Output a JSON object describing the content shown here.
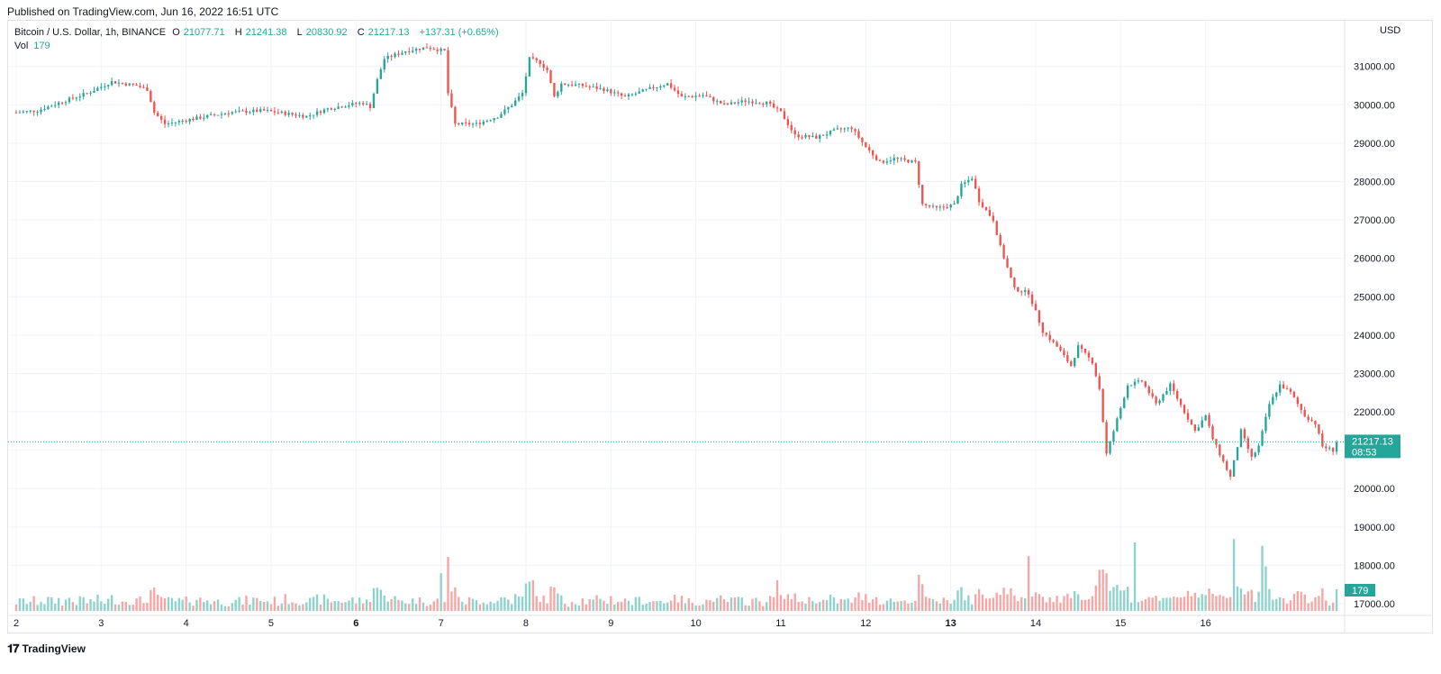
{
  "header": {
    "published": "Published on TradingView.com, Jun 16, 2022 16:51 UTC"
  },
  "legend": {
    "symbol": "Bitcoin / U.S. Dollar, 1h, BINANCE",
    "open_label": "O",
    "open": "21077.71",
    "high_label": "H",
    "high": "21241.38",
    "low_label": "L",
    "low": "20830.92",
    "close_label": "C",
    "close": "21217.13",
    "change": "+137.31 (+0.65%)",
    "vol_label": "Vol",
    "vol": "179"
  },
  "price_scale": {
    "currency": "USD",
    "last_price": "21217.13",
    "countdown": "08:53",
    "vol_tag": "179"
  },
  "footer": {
    "brand": "TradingView"
  },
  "colors": {
    "up": "#26a69a",
    "down": "#ef5350",
    "up_vol": "#8dd3cb",
    "down_vol": "#f6a6a4",
    "grid": "#f0f3fa"
  },
  "chart_data": {
    "type": "candlestick",
    "title": "Bitcoin / U.S. Dollar, 1h, BINANCE",
    "y_label": "USD",
    "ylim": [
      17000,
      31500
    ],
    "y_ticks": [
      "17000.00",
      "18000.00",
      "19000.00",
      "20000.00",
      "21000.00",
      "22000.00",
      "23000.00",
      "24000.00",
      "25000.00",
      "26000.00",
      "27000.00",
      "28000.00",
      "29000.00",
      "30000.00",
      "31000.00"
    ],
    "x_ticks": [
      {
        "label": "2",
        "bold": false
      },
      {
        "label": "3",
        "bold": false
      },
      {
        "label": "4",
        "bold": false
      },
      {
        "label": "5",
        "bold": false
      },
      {
        "label": "6",
        "bold": true
      },
      {
        "label": "7",
        "bold": false
      },
      {
        "label": "8",
        "bold": false
      },
      {
        "label": "9",
        "bold": false
      },
      {
        "label": "10",
        "bold": false
      },
      {
        "label": "11",
        "bold": false
      },
      {
        "label": "12",
        "bold": false
      },
      {
        "label": "13",
        "bold": true
      },
      {
        "label": "14",
        "bold": false
      },
      {
        "label": "15",
        "bold": false
      },
      {
        "label": "16",
        "bold": false
      }
    ],
    "day_start_hour": 0,
    "hours_total": 374,
    "close_path": [
      {
        "h": 0,
        "p": 29800
      },
      {
        "h": 6,
        "p": 29850
      },
      {
        "h": 12,
        "p": 30050
      },
      {
        "h": 20,
        "p": 30300
      },
      {
        "h": 27,
        "p": 30600
      },
      {
        "h": 34,
        "p": 30500
      },
      {
        "h": 37,
        "p": 30400
      },
      {
        "h": 39,
        "p": 29800
      },
      {
        "h": 42,
        "p": 29500
      },
      {
        "h": 48,
        "p": 29600
      },
      {
        "h": 54,
        "p": 29700
      },
      {
        "h": 60,
        "p": 29800
      },
      {
        "h": 70,
        "p": 29850
      },
      {
        "h": 82,
        "p": 29700
      },
      {
        "h": 88,
        "p": 29900
      },
      {
        "h": 94,
        "p": 30000
      },
      {
        "h": 98,
        "p": 30050
      },
      {
        "h": 100,
        "p": 29950
      },
      {
        "h": 102,
        "p": 30650
      },
      {
        "h": 104,
        "p": 31200
      },
      {
        "h": 110,
        "p": 31400
      },
      {
        "h": 116,
        "p": 31500
      },
      {
        "h": 121,
        "p": 31400
      },
      {
        "h": 122,
        "p": 30300
      },
      {
        "h": 124,
        "p": 29500
      },
      {
        "h": 130,
        "p": 29500
      },
      {
        "h": 136,
        "p": 29700
      },
      {
        "h": 140,
        "p": 30000
      },
      {
        "h": 143,
        "p": 30300
      },
      {
        "h": 145,
        "p": 31200
      },
      {
        "h": 148,
        "p": 31100
      },
      {
        "h": 150,
        "p": 30900
      },
      {
        "h": 152,
        "p": 30200
      },
      {
        "h": 154,
        "p": 30550
      },
      {
        "h": 160,
        "p": 30500
      },
      {
        "h": 166,
        "p": 30400
      },
      {
        "h": 172,
        "p": 30200
      },
      {
        "h": 180,
        "p": 30450
      },
      {
        "h": 184,
        "p": 30550
      },
      {
        "h": 188,
        "p": 30200
      },
      {
        "h": 194,
        "p": 30250
      },
      {
        "h": 200,
        "p": 30000
      },
      {
        "h": 206,
        "p": 30100
      },
      {
        "h": 212,
        "p": 30050
      },
      {
        "h": 216,
        "p": 29800
      },
      {
        "h": 220,
        "p": 29200
      },
      {
        "h": 226,
        "p": 29150
      },
      {
        "h": 232,
        "p": 29350
      },
      {
        "h": 236,
        "p": 29400
      },
      {
        "h": 240,
        "p": 28900
      },
      {
        "h": 244,
        "p": 28500
      },
      {
        "h": 248,
        "p": 28600
      },
      {
        "h": 254,
        "p": 28500
      },
      {
        "h": 256,
        "p": 27400
      },
      {
        "h": 260,
        "p": 27300
      },
      {
        "h": 265,
        "p": 27400
      },
      {
        "h": 267,
        "p": 27900
      },
      {
        "h": 270,
        "p": 28100
      },
      {
        "h": 272,
        "p": 27500
      },
      {
        "h": 276,
        "p": 27000
      },
      {
        "h": 278,
        "p": 26300
      },
      {
        "h": 282,
        "p": 25200
      },
      {
        "h": 286,
        "p": 25100
      },
      {
        "h": 290,
        "p": 24100
      },
      {
        "h": 294,
        "p": 23700
      },
      {
        "h": 298,
        "p": 23200
      },
      {
        "h": 300,
        "p": 23700
      },
      {
        "h": 304,
        "p": 23300
      },
      {
        "h": 306,
        "p": 22600
      },
      {
        "h": 308,
        "p": 20900
      },
      {
        "h": 311,
        "p": 21800
      },
      {
        "h": 314,
        "p": 22700
      },
      {
        "h": 318,
        "p": 22800
      },
      {
        "h": 322,
        "p": 22200
      },
      {
        "h": 326,
        "p": 22700
      },
      {
        "h": 330,
        "p": 22000
      },
      {
        "h": 333,
        "p": 21500
      },
      {
        "h": 336,
        "p": 21900
      },
      {
        "h": 338,
        "p": 21300
      },
      {
        "h": 341,
        "p": 20700
      },
      {
        "h": 343,
        "p": 20300
      },
      {
        "h": 346,
        "p": 21500
      },
      {
        "h": 349,
        "p": 20800
      },
      {
        "h": 351,
        "p": 21100
      },
      {
        "h": 354,
        "p": 22200
      },
      {
        "h": 357,
        "p": 22700
      },
      {
        "h": 360,
        "p": 22500
      },
      {
        "h": 364,
        "p": 21900
      },
      {
        "h": 367,
        "p": 21700
      },
      {
        "h": 369,
        "p": 21100
      },
      {
        "h": 372,
        "p": 21000
      },
      {
        "h": 373,
        "p": 21217
      }
    ],
    "volume_spikes": [
      {
        "h": 120,
        "v": 1.1
      },
      {
        "h": 146,
        "v": 0.9
      },
      {
        "h": 215,
        "v": 0.9
      },
      {
        "h": 266,
        "v": 0.6
      },
      {
        "h": 286,
        "v": 1.6
      },
      {
        "h": 306,
        "v": 1.2
      },
      {
        "h": 316,
        "v": 2.0
      },
      {
        "h": 344,
        "v": 2.1
      },
      {
        "h": 352,
        "v": 1.9
      },
      {
        "h": 353,
        "v": 1.3
      }
    ]
  }
}
